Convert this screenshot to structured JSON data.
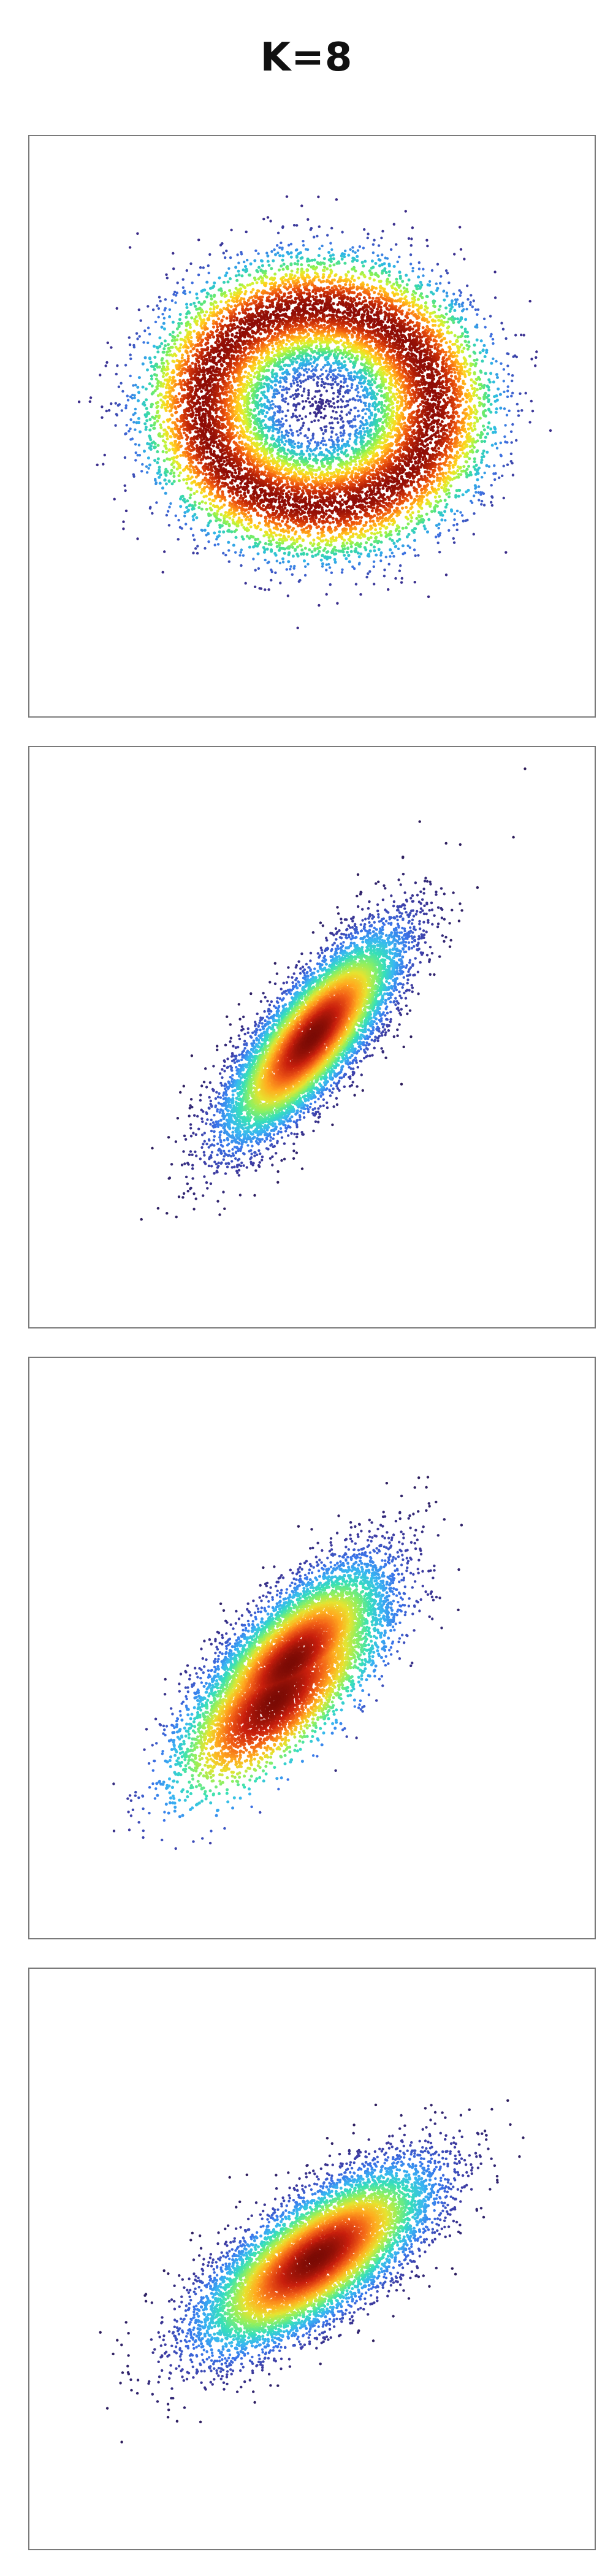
{
  "page": {
    "title": "K=8"
  },
  "colors": {
    "frame": "#7a7a7a",
    "colormap_ring": [
      "#3b2a87",
      "#3f6fe0",
      "#2fb8e8",
      "#38d9a8",
      "#7df05a",
      "#d7f232",
      "#ffd21d",
      "#ff9d18",
      "#f25d10",
      "#c72c08",
      "#8f0d06"
    ],
    "colormap_blob": [
      "#2d1c59",
      "#3e3ea6",
      "#3a74ea",
      "#38b6f2",
      "#37e0b8",
      "#8cf061",
      "#e7e330",
      "#ffab1f",
      "#f26017",
      "#c81f0d",
      "#7b0b05"
    ]
  },
  "chart_data": [
    {
      "type": "scatter",
      "title": "K=8",
      "xlabel": "",
      "ylabel": "",
      "grid": false,
      "axes_visible": false,
      "xlim": [
        -4.5,
        4.5
      ],
      "ylim": [
        -4.5,
        4.5
      ],
      "points": 12000,
      "colormap": "colormap_ring",
      "distribution": {
        "shape": "ring",
        "center": [
          0.1,
          0.3
        ],
        "radius_x": 1.85,
        "radius_y": 1.55,
        "spread": 0.34,
        "tilt_deg": 0
      },
      "seed": 11
    },
    {
      "type": "scatter",
      "xlabel": "",
      "ylabel": "",
      "grid": false,
      "axes_visible": false,
      "xlim": [
        -4.5,
        4.5
      ],
      "ylim": [
        -4.5,
        4.5
      ],
      "points": 9000,
      "colormap": "colormap_blob",
      "distribution": {
        "shape": "gaussian",
        "center": [
          0.0,
          0.0
        ],
        "sigma_major": 1.02,
        "sigma_minor": 0.34,
        "angle_deg": 50
      },
      "seed": 27
    },
    {
      "type": "scatter",
      "xlabel": "",
      "ylabel": "",
      "grid": false,
      "axes_visible": false,
      "xlim": [
        -4.5,
        4.5
      ],
      "ylim": [
        -4.5,
        4.5
      ],
      "points": 9000,
      "colormap": "colormap_blob",
      "distribution": {
        "shape": "gaussian",
        "center": [
          -0.35,
          -0.25
        ],
        "sigma_major": 1.02,
        "sigma_minor": 0.42,
        "angle_deg": 45,
        "density_peak_offset": [
          -0.55,
          -0.55
        ]
      },
      "seed": 53
    },
    {
      "type": "scatter",
      "xlabel": "",
      "ylabel": "",
      "grid": false,
      "axes_visible": false,
      "xlim": [
        -4.5,
        4.5
      ],
      "ylim": [
        -4.5,
        4.5
      ],
      "points": 9000,
      "colormap": "colormap_blob",
      "distribution": {
        "shape": "gaussian",
        "center": [
          0.05,
          0.0
        ],
        "sigma_major": 1.1,
        "sigma_minor": 0.42,
        "angle_deg": 35
      },
      "seed": 91
    }
  ]
}
